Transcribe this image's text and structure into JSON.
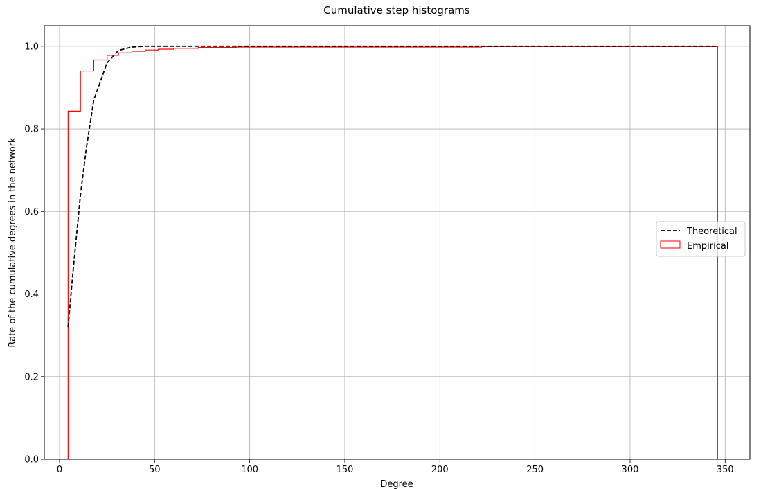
{
  "chart_data": {
    "type": "line",
    "title": "Cumulative step histograms",
    "xlabel": "Degree",
    "ylabel": "Rate of the cumulative degrees in the network",
    "xlim": [
      -8,
      363
    ],
    "ylim": [
      0,
      1.05
    ],
    "x_ticks": [
      0,
      50,
      100,
      150,
      200,
      250,
      300,
      350
    ],
    "x_tick_labels": [
      "0",
      "50",
      "100",
      "150",
      "200",
      "250",
      "300",
      "350"
    ],
    "y_ticks": [
      0,
      0.2,
      0.4,
      0.6,
      0.8,
      1.0
    ],
    "y_tick_labels": [
      "0.0",
      "0.2",
      "0.4",
      "0.6",
      "0.8",
      "1.0"
    ],
    "grid": true,
    "legend_position": "center-right",
    "series": [
      {
        "name": "Theoretical",
        "style": "dashed",
        "color": "#000000",
        "x": [
          4.5,
          7,
          11,
          14,
          18,
          25,
          31,
          38,
          45,
          60,
          100,
          150,
          200,
          250,
          300,
          346
        ],
        "y": [
          0.32,
          0.45,
          0.64,
          0.75,
          0.87,
          0.96,
          0.99,
          0.998,
          1.0,
          1.0,
          1.0,
          1.0,
          1.0,
          1.0,
          1.0,
          1.0
        ]
      },
      {
        "name": "Empirical",
        "style": "step",
        "color": "#ff0000",
        "x": [
          4.5,
          11,
          18,
          25,
          31,
          38,
          45,
          52,
          60,
          73,
          93,
          222,
          346
        ],
        "y": [
          0.843,
          0.94,
          0.967,
          0.978,
          0.984,
          0.988,
          0.991,
          0.993,
          0.995,
          0.997,
          0.998,
          0.999,
          1.0
        ]
      }
    ]
  }
}
